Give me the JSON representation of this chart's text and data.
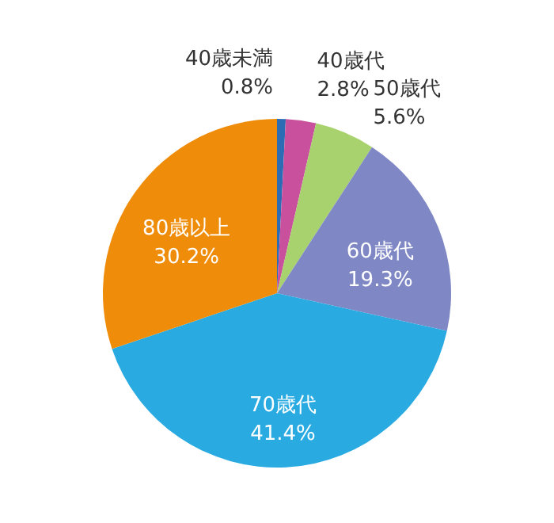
{
  "chart_data": {
    "type": "pie",
    "categories": [
      "40歳未満",
      "40歳代",
      "50歳代",
      "60歳代",
      "70歳代",
      "80歳以上"
    ],
    "values": [
      0.8,
      2.8,
      5.6,
      19.3,
      41.4,
      30.2
    ],
    "colors": [
      "#2b6cb5",
      "#c8509c",
      "#a8d26e",
      "#7f88c4",
      "#29abe2",
      "#ef8c0a"
    ],
    "value_labels": [
      "0.8%",
      "2.8%",
      "5.6%",
      "19.3%",
      "41.4%",
      "30.2%"
    ]
  }
}
